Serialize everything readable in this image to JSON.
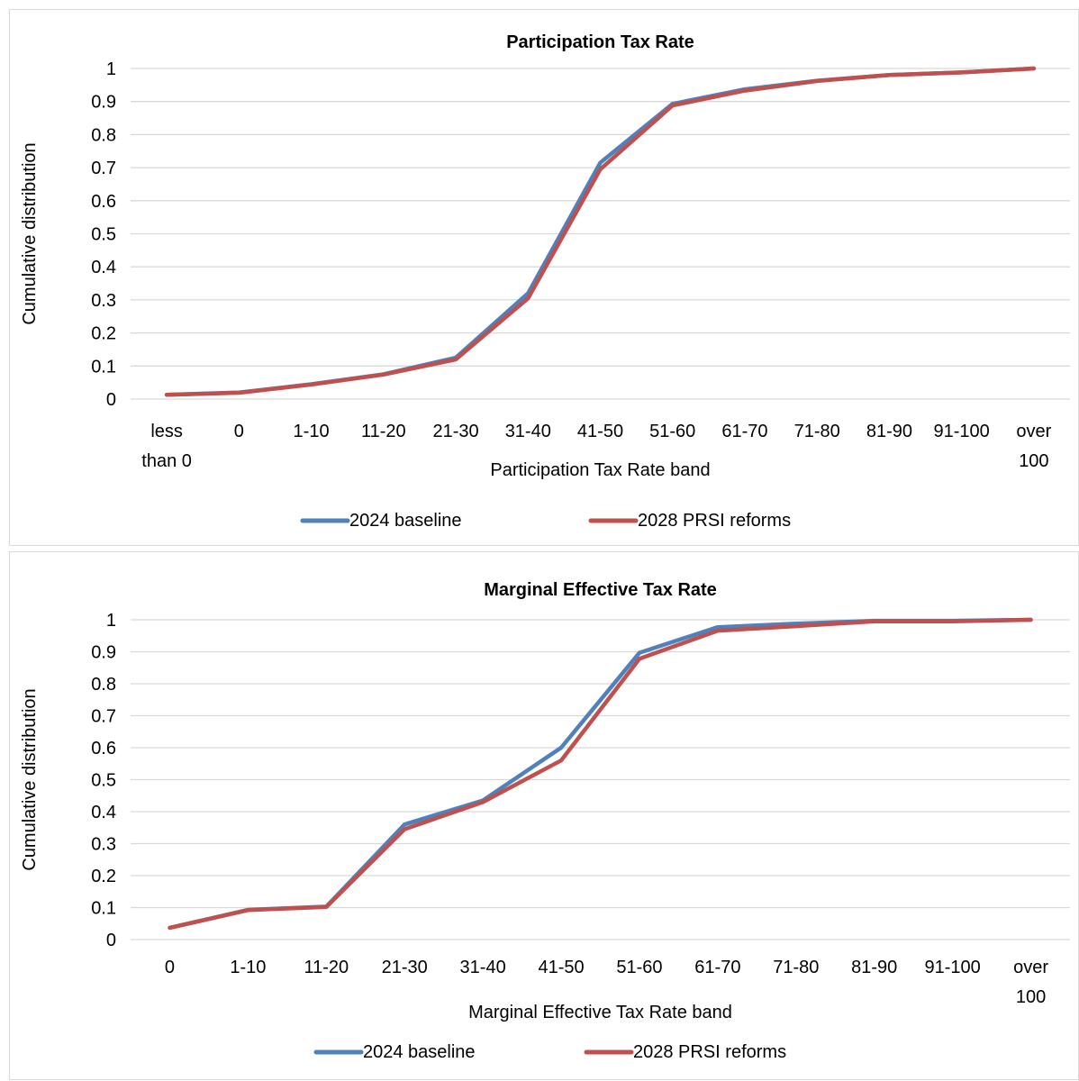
{
  "chart_data": [
    {
      "type": "line",
      "title": "Participation Tax Rate",
      "xlabel": "Participation Tax Rate band",
      "ylabel": "Cumulative distribution",
      "categories": [
        "less than 0",
        "0",
        "1-10",
        "11-20",
        "21-30",
        "31-40",
        "41-50",
        "51-60",
        "61-70",
        "71-80",
        "81-90",
        "91-100",
        "over 100"
      ],
      "category_lines": [
        [
          "less",
          "than 0"
        ],
        [
          "0"
        ],
        [
          "1-10"
        ],
        [
          "11-20"
        ],
        [
          "21-30"
        ],
        [
          "31-40"
        ],
        [
          "41-50"
        ],
        [
          "51-60"
        ],
        [
          "61-70"
        ],
        [
          "71-80"
        ],
        [
          "81-90"
        ],
        [
          "91-100"
        ],
        [
          "over",
          "100"
        ]
      ],
      "yticks": [
        "0",
        "0.1",
        "0.2",
        "0.3",
        "0.4",
        "0.5",
        "0.6",
        "0.7",
        "0.8",
        "0.9",
        "1"
      ],
      "ylim": [
        0,
        1
      ],
      "grid": true,
      "legend_position": "bottom",
      "series": [
        {
          "name": "2024 baseline",
          "color": "#4F81BD",
          "values": [
            0.013,
            0.02,
            0.045,
            0.075,
            0.125,
            0.32,
            0.715,
            0.893,
            0.937,
            0.963,
            0.98,
            0.988,
            1.0
          ]
        },
        {
          "name": "2028 PRSI reforms",
          "color": "#C0504D",
          "values": [
            0.013,
            0.019,
            0.044,
            0.074,
            0.12,
            0.305,
            0.695,
            0.888,
            0.933,
            0.962,
            0.98,
            0.988,
            1.0
          ]
        }
      ]
    },
    {
      "type": "line",
      "title": "Marginal Effective Tax Rate",
      "xlabel": "Marginal Effective Tax Rate band",
      "ylabel": "Cumulative distribution",
      "categories": [
        "0",
        "1-10",
        "11-20",
        "21-30",
        "31-40",
        "41-50",
        "51-60",
        "61-70",
        "71-80",
        "81-90",
        "91-100",
        "over 100"
      ],
      "category_lines": [
        [
          "0"
        ],
        [
          "1-10"
        ],
        [
          "11-20"
        ],
        [
          "21-30"
        ],
        [
          "31-40"
        ],
        [
          "41-50"
        ],
        [
          "51-60"
        ],
        [
          "61-70"
        ],
        [
          "71-80"
        ],
        [
          "81-90"
        ],
        [
          "91-100"
        ],
        [
          "over",
          "100"
        ]
      ],
      "yticks": [
        "0",
        "0.1",
        "0.2",
        "0.3",
        "0.4",
        "0.5",
        "0.6",
        "0.7",
        "0.8",
        "0.9",
        "1"
      ],
      "ylim": [
        0,
        1
      ],
      "grid": true,
      "legend_position": "bottom",
      "series": [
        {
          "name": "2024 baseline",
          "color": "#4F81BD",
          "values": [
            0.037,
            0.093,
            0.103,
            0.36,
            0.435,
            0.6,
            0.897,
            0.977,
            0.988,
            0.997,
            0.997,
            1.0
          ]
        },
        {
          "name": "2028 PRSI reforms",
          "color": "#C0504D",
          "values": [
            0.037,
            0.092,
            0.102,
            0.345,
            0.43,
            0.56,
            0.878,
            0.966,
            0.98,
            0.995,
            0.995,
            1.0
          ]
        }
      ]
    }
  ]
}
